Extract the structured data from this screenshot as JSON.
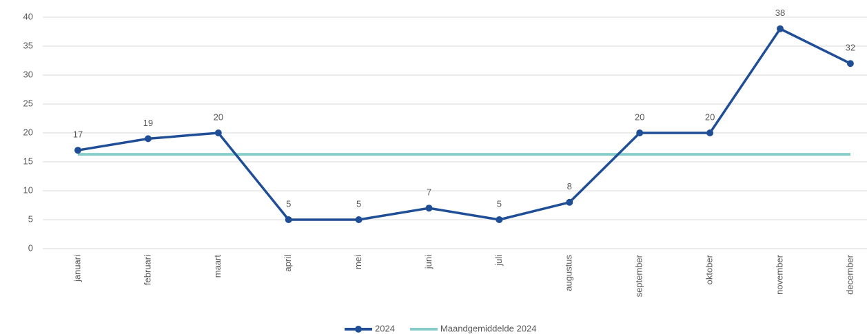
{
  "chart_data": {
    "type": "line",
    "categories": [
      "januari",
      "februari",
      "maart",
      "april",
      "mei",
      "juni",
      "juli",
      "augustus",
      "september",
      "oktober",
      "november",
      "december"
    ],
    "series": [
      {
        "name": "2024",
        "color": "#1f4e96",
        "values": [
          17,
          19,
          20,
          5,
          5,
          7,
          5,
          8,
          20,
          20,
          38,
          32
        ],
        "data_labels": true,
        "markers": true
      },
      {
        "name": "Maandgemiddelde 2024",
        "color": "#86cdc9",
        "values": [
          16.3,
          16.3,
          16.3,
          16.3,
          16.3,
          16.3,
          16.3,
          16.3,
          16.3,
          16.3,
          16.3,
          16.3
        ],
        "data_labels": false,
        "markers": false
      }
    ],
    "ylim": [
      0,
      40
    ],
    "yticks": [
      0,
      5,
      10,
      15,
      20,
      25,
      30,
      35,
      40
    ],
    "grid": true,
    "legend": "bottom"
  }
}
